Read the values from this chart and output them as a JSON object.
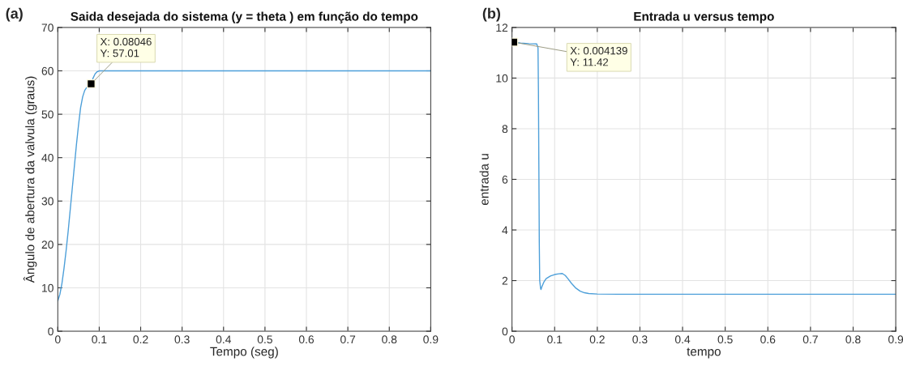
{
  "chart_data": [
    {
      "type": "line",
      "title": "Saida desejada do sistema (y = theta ) em função do tempo",
      "xlabel": "Tempo (seg)",
      "ylabel": "Ângulo de abertura da valvula (graus)",
      "x": [
        0,
        0.005,
        0.01,
        0.015,
        0.02,
        0.025,
        0.03,
        0.035,
        0.04,
        0.045,
        0.05,
        0.055,
        0.06,
        0.065,
        0.07,
        0.075,
        0.08046,
        0.085,
        0.09,
        0.095,
        0.1,
        0.2,
        0.5,
        0.9
      ],
      "series": [
        {
          "color": "#4d9fd9",
          "values": [
            7,
            8.5,
            11,
            14.5,
            18.5,
            23,
            28,
            33,
            38,
            43,
            47.5,
            51.5,
            54,
            55.5,
            56.2,
            56.6,
            57.01,
            58.3,
            59.3,
            59.8,
            60,
            60,
            60,
            60
          ]
        }
      ],
      "xlim": [
        0,
        0.9
      ],
      "ylim": [
        0,
        70
      ],
      "xticks": [
        0,
        0.1,
        0.2,
        0.3,
        0.4,
        0.5,
        0.6,
        0.7,
        0.8,
        0.9
      ],
      "yticks": [
        0,
        10,
        20,
        30,
        40,
        50,
        60,
        70
      ],
      "grid": true,
      "marker": "none",
      "line_style": "solid",
      "annotations": [
        "(a)",
        {
          "text": "X: 0.08046\nY: 57.01",
          "x": 0.08046,
          "y": 57.01
        }
      ]
    },
    {
      "type": "line",
      "title": "Entrada u versus tempo",
      "xlabel": "tempo",
      "ylabel": "entrada u",
      "x": [
        0,
        0.004139,
        0.02,
        0.04,
        0.058,
        0.061,
        0.062,
        0.063,
        0.064,
        0.065,
        0.067,
        0.068,
        0.07,
        0.075,
        0.08,
        0.09,
        0.1,
        0.11,
        0.118,
        0.125,
        0.13,
        0.14,
        0.15,
        0.16,
        0.17,
        0.18,
        0.2,
        0.25,
        0.4,
        0.9
      ],
      "series": [
        {
          "color": "#4d9fd9",
          "values": [
            11.42,
            11.42,
            11.38,
            11.36,
            11.35,
            11.2,
            9.5,
            6.5,
            3.5,
            2.0,
            1.7,
            1.65,
            1.75,
            1.95,
            2.08,
            2.18,
            2.24,
            2.27,
            2.28,
            2.2,
            2.1,
            1.88,
            1.7,
            1.58,
            1.52,
            1.49,
            1.47,
            1.46,
            1.46,
            1.46
          ]
        }
      ],
      "xlim": [
        0,
        0.9
      ],
      "ylim": [
        0,
        12
      ],
      "xticks": [
        0,
        0.1,
        0.2,
        0.3,
        0.4,
        0.5,
        0.6,
        0.7,
        0.8,
        0.9
      ],
      "yticks": [
        0,
        2,
        4,
        6,
        8,
        10,
        12
      ],
      "grid": true,
      "marker": "none",
      "line_style": "solid",
      "annotations": [
        "(b)",
        {
          "text": "X: 0.004139\nY: 11.42",
          "x": 0.004139,
          "y": 11.42
        }
      ]
    }
  ]
}
